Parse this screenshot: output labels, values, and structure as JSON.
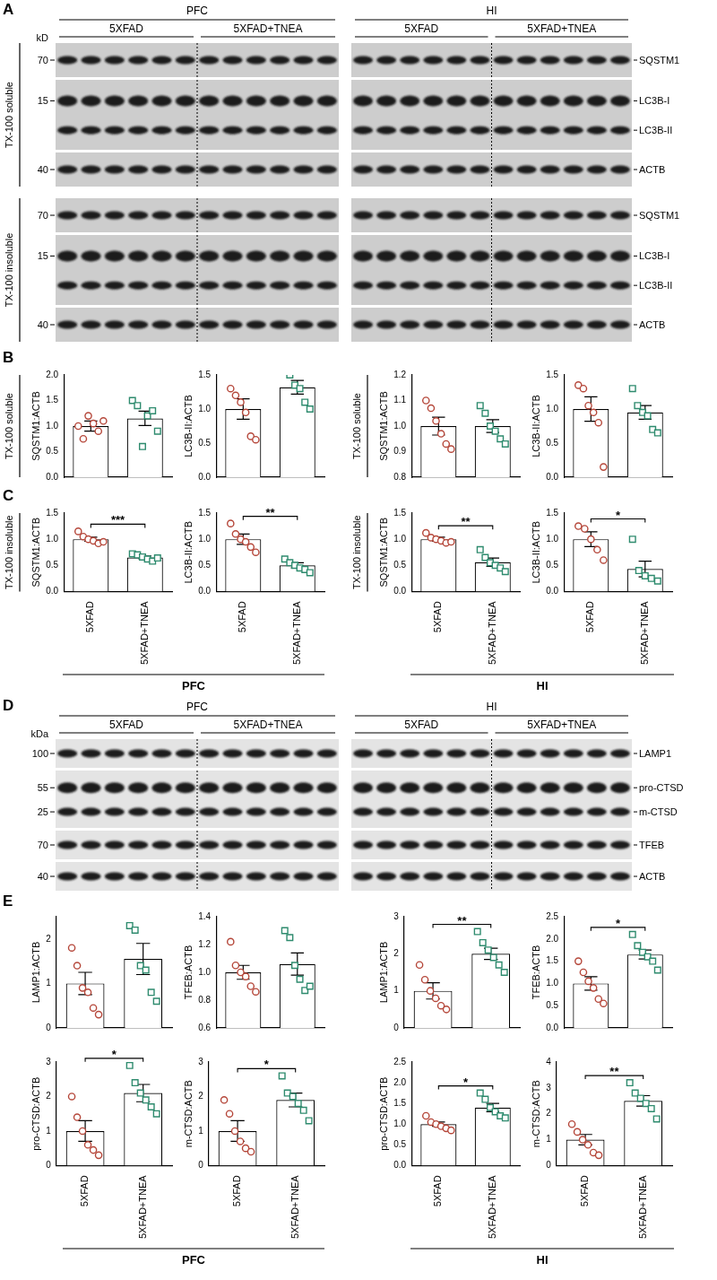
{
  "panel_labels": [
    "A",
    "B",
    "C",
    "D",
    "E"
  ],
  "blots": [
    {
      "panel": "A",
      "marker_unit": "kD",
      "lanes_per_group": 6,
      "regions": [
        {
          "name": "PFC",
          "groups": [
            "5XFAD",
            "5XFAD+TNEA"
          ]
        },
        {
          "name": "HI",
          "groups": [
            "5XFAD",
            "5XFAD+TNEA"
          ]
        }
      ],
      "sections": [
        {
          "label": "TX-100 soluble",
          "rows": [
            {
              "bands": [
                {
                  "name": "SQSTM1",
                  "marker": 70
                }
              ]
            },
            {
              "bands": [
                {
                  "name": "LC3B-I",
                  "marker": 15
                },
                {
                  "name": "LC3B-II"
                }
              ]
            },
            {
              "bands": [
                {
                  "name": "ACTB",
                  "marker": 40
                }
              ]
            }
          ]
        },
        {
          "label": "TX-100 insoluble",
          "rows": [
            {
              "bands": [
                {
                  "name": "SQSTM1",
                  "marker": 70
                }
              ]
            },
            {
              "bands": [
                {
                  "name": "LC3B-I",
                  "marker": 15
                },
                {
                  "name": "LC3B-II"
                }
              ]
            },
            {
              "bands": [
                {
                  "name": "ACTB",
                  "marker": 40
                }
              ]
            }
          ]
        }
      ]
    },
    {
      "panel": "D",
      "marker_unit": "kDa",
      "lanes_per_group": 6,
      "regions": [
        {
          "name": "PFC",
          "groups": [
            "5XFAD",
            "5XFAD+TNEA"
          ]
        },
        {
          "name": "HI",
          "groups": [
            "5XFAD",
            "5XFAD+TNEA"
          ]
        }
      ],
      "sections": [
        {
          "rows": [
            {
              "bands": [
                {
                  "name": "LAMP1",
                  "marker": 100
                }
              ]
            },
            {
              "bands": [
                {
                  "name": "pro-CTSD",
                  "marker": 55
                },
                {
                  "name": "m-CTSD",
                  "marker": 25
                }
              ]
            },
            {
              "bands": [
                {
                  "name": "TFEB",
                  "marker": 70
                }
              ]
            },
            {
              "bands": [
                {
                  "name": "ACTB",
                  "marker": 40
                }
              ]
            }
          ]
        }
      ]
    }
  ],
  "footer_labels": [
    [
      "PFC",
      "HI"
    ],
    [
      "PFC",
      "HI"
    ]
  ],
  "chart_data": [
    {
      "type": "bar",
      "y_label": "SQSTM1:ACTB",
      "y_group_label": "TX-100 soluble",
      "tick_labels": "y",
      "categories": [
        "5XFAD",
        "5XFAD+TNEA"
      ],
      "values": [
        1.0,
        1.15
      ],
      "errors": [
        0.1,
        0.14
      ],
      "points": [
        {
          "color": "#b5473a",
          "marker": "circle",
          "values": [
            1.0,
            0.75,
            1.2,
            1.05,
            0.9,
            1.1
          ]
        },
        {
          "color": "#2e8b6e",
          "marker": "square",
          "values": [
            1.5,
            1.4,
            0.6,
            1.2,
            1.3,
            0.9
          ]
        }
      ],
      "ylim": [
        0,
        2
      ],
      "yticks": [
        {
          "value": 0,
          "label": "0.0"
        },
        0.5,
        {
          "value": 1,
          "label": "1.0"
        },
        1.5,
        {
          "value": 2,
          "label": "2.0"
        }
      ],
      "grid": false
    },
    {
      "type": "bar",
      "y_label": "LC3B-II:ACTB",
      "tick_labels": "y",
      "categories": [
        "5XFAD",
        "5XFAD+TNEA"
      ],
      "values": [
        1.0,
        1.32
      ],
      "errors": [
        0.15,
        0.1
      ],
      "points": [
        {
          "color": "#b5473a",
          "marker": "circle",
          "values": [
            1.3,
            1.2,
            1.1,
            0.95,
            0.6,
            0.55
          ]
        },
        {
          "color": "#2e8b6e",
          "marker": "square",
          "values": [
            1.6,
            1.5,
            1.35,
            1.3,
            1.1,
            1.0
          ]
        }
      ],
      "ylim": [
        0,
        1.5
      ],
      "yticks": [
        {
          "value": 0,
          "label": "0.0"
        },
        0.5,
        {
          "value": 1,
          "label": "1.0"
        },
        1.5
      ],
      "grid": false
    },
    {
      "type": "bar",
      "y_label": "SQSTM1:ACTB",
      "y_group_label": "TX-100 soluble",
      "tick_labels": "y",
      "categories": [
        "5XFAD",
        "5XFAD+TNEA"
      ],
      "values": [
        1.0,
        1.0
      ],
      "errors": [
        0.035,
        0.025
      ],
      "points": [
        {
          "color": "#b5473a",
          "marker": "circle",
          "values": [
            1.1,
            1.07,
            1.02,
            0.97,
            0.93,
            0.91
          ]
        },
        {
          "color": "#2e8b6e",
          "marker": "square",
          "values": [
            1.08,
            1.05,
            1.0,
            0.98,
            0.95,
            0.93
          ]
        }
      ],
      "ylim": [
        0.8,
        1.2
      ],
      "yticks": [
        0.8,
        0.9,
        {
          "value": 1,
          "label": "1.0"
        },
        1.1,
        1.2
      ],
      "grid": false
    },
    {
      "type": "bar",
      "y_label": "LC3B-II:ACTB",
      "tick_labels": "y",
      "categories": [
        "5XFAD",
        "5XFAD+TNEA"
      ],
      "values": [
        1.0,
        0.95
      ],
      "errors": [
        0.18,
        0.1
      ],
      "points": [
        {
          "color": "#b5473a",
          "marker": "circle",
          "values": [
            1.35,
            1.3,
            1.05,
            0.95,
            0.8,
            0.15
          ]
        },
        {
          "color": "#2e8b6e",
          "marker": "square",
          "values": [
            1.3,
            1.05,
            0.95,
            0.9,
            0.7,
            0.65
          ]
        }
      ],
      "ylim": [
        0,
        1.5
      ],
      "yticks": [
        {
          "value": 0,
          "label": "0.0"
        },
        0.5,
        {
          "value": 1,
          "label": "1.0"
        },
        1.5
      ],
      "grid": false
    },
    {
      "type": "bar",
      "y_label": "SQSTM1:ACTB",
      "y_group_label": "TX-100 insoluble",
      "significance": "***",
      "categories": [
        "5XFAD",
        "5XFAD+TNEA"
      ],
      "values": [
        1.0,
        0.65
      ],
      "errors": [
        0.04,
        0.03
      ],
      "points": [
        {
          "color": "#b5473a",
          "marker": "circle",
          "values": [
            1.15,
            1.05,
            1.0,
            0.97,
            0.92,
            0.95
          ]
        },
        {
          "color": "#2e8b6e",
          "marker": "square",
          "values": [
            0.72,
            0.7,
            0.66,
            0.62,
            0.58,
            0.64
          ]
        }
      ],
      "ylim": [
        0,
        1.5
      ],
      "yticks": [
        {
          "value": 0,
          "label": "0.0"
        },
        0.5,
        {
          "value": 1,
          "label": "1.0"
        },
        1.5
      ],
      "grid": false
    },
    {
      "type": "bar",
      "y_label": "LC3B-II:ACTB",
      "significance": "**",
      "categories": [
        "5XFAD",
        "5XFAD+TNEA"
      ],
      "values": [
        1.0,
        0.5
      ],
      "errors": [
        0.1,
        0.05
      ],
      "points": [
        {
          "color": "#b5473a",
          "marker": "circle",
          "values": [
            1.3,
            1.1,
            1.0,
            0.95,
            0.85,
            0.75
          ]
        },
        {
          "color": "#2e8b6e",
          "marker": "square",
          "values": [
            0.62,
            0.55,
            0.5,
            0.45,
            0.42,
            0.36
          ]
        }
      ],
      "ylim": [
        0,
        1.5
      ],
      "yticks": [
        {
          "value": 0,
          "label": "0.0"
        },
        0.5,
        {
          "value": 1,
          "label": "1.0"
        },
        1.5
      ],
      "grid": false
    },
    {
      "type": "bar",
      "y_label": "SQSTM1:ACTB",
      "y_group_label": "TX-100 insoluble",
      "significance": "**",
      "categories": [
        "5XFAD",
        "5XFAD+TNEA"
      ],
      "values": [
        1.0,
        0.56
      ],
      "errors": [
        0.04,
        0.08
      ],
      "points": [
        {
          "color": "#b5473a",
          "marker": "circle",
          "values": [
            1.12,
            1.03,
            1.0,
            0.97,
            0.93,
            0.95
          ]
        },
        {
          "color": "#2e8b6e",
          "marker": "square",
          "values": [
            0.8,
            0.65,
            0.55,
            0.5,
            0.45,
            0.38
          ]
        }
      ],
      "ylim": [
        0,
        1.5
      ],
      "yticks": [
        {
          "value": 0,
          "label": "0.0"
        },
        0.5,
        {
          "value": 1,
          "label": "1.0"
        },
        1.5
      ],
      "grid": false
    },
    {
      "type": "bar",
      "y_label": "LC3B-II:ACTB",
      "significance": "*",
      "categories": [
        "5XFAD",
        "5XFAD+TNEA"
      ],
      "values": [
        1.0,
        0.43
      ],
      "errors": [
        0.14,
        0.15
      ],
      "points": [
        {
          "color": "#b5473a",
          "marker": "circle",
          "values": [
            1.25,
            1.2,
            1.0,
            0.8,
            0.6
          ]
        },
        {
          "color": "#2e8b6e",
          "marker": "square",
          "values": [
            1.0,
            0.4,
            0.3,
            0.25,
            0.2
          ]
        }
      ],
      "ylim": [
        0,
        1.5
      ],
      "yticks": [
        {
          "value": 0,
          "label": "0.0"
        },
        0.5,
        {
          "value": 1,
          "label": "1.0"
        },
        1.5
      ],
      "grid": false
    },
    {
      "type": "bar",
      "y_label": "LAMP1:ACTB",
      "tick_labels": "y",
      "categories": [
        "5XFAD",
        "5XFAD+TNEA"
      ],
      "values": [
        1.0,
        1.55
      ],
      "errors": [
        0.25,
        0.35
      ],
      "points": [
        {
          "color": "#b5473a",
          "marker": "circle",
          "values": [
            1.8,
            1.4,
            0.9,
            0.8,
            0.45,
            0.3
          ]
        },
        {
          "color": "#2e8b6e",
          "marker": "square",
          "values": [
            2.3,
            2.2,
            1.4,
            1.3,
            0.8,
            0.6
          ]
        }
      ],
      "ylim": [
        0,
        2.5
      ],
      "yticks": [
        0,
        1,
        2
      ],
      "grid": false
    },
    {
      "type": "bar",
      "y_label": "TFEB:ACTB",
      "tick_labels": "y",
      "categories": [
        "5XFAD",
        "5XFAD+TNEA"
      ],
      "values": [
        1.0,
        1.06
      ],
      "errors": [
        0.05,
        0.08
      ],
      "points": [
        {
          "color": "#b5473a",
          "marker": "circle",
          "values": [
            1.22,
            1.05,
            1.0,
            0.97,
            0.9,
            0.86
          ]
        },
        {
          "color": "#2e8b6e",
          "marker": "square",
          "values": [
            1.3,
            1.25,
            1.05,
            0.95,
            0.87,
            0.9
          ]
        }
      ],
      "ylim": [
        0.6,
        1.4
      ],
      "yticks": [
        0.6,
        0.8,
        {
          "value": 1,
          "label": "1.0"
        },
        1.2,
        1.4
      ],
      "grid": false
    },
    {
      "type": "bar",
      "y_label": "LAMP1:ACTB",
      "tick_labels": "y",
      "significance": "**",
      "categories": [
        "5XFAD",
        "5XFAD+TNEA"
      ],
      "values": [
        1.0,
        2.0
      ],
      "errors": [
        0.22,
        0.15
      ],
      "points": [
        {
          "color": "#b5473a",
          "marker": "circle",
          "values": [
            1.7,
            1.3,
            1.0,
            0.8,
            0.6,
            0.5
          ]
        },
        {
          "color": "#2e8b6e",
          "marker": "square",
          "values": [
            2.6,
            2.3,
            2.1,
            1.9,
            1.7,
            1.5
          ]
        }
      ],
      "ylim": [
        0,
        3
      ],
      "yticks": [
        0,
        1,
        2,
        3
      ],
      "grid": false
    },
    {
      "type": "bar",
      "y_label": "TFEB:ACTB",
      "tick_labels": "y",
      "significance": "*",
      "categories": [
        "5XFAD",
        "5XFAD+TNEA"
      ],
      "values": [
        1.0,
        1.65
      ],
      "errors": [
        0.15,
        0.1
      ],
      "points": [
        {
          "color": "#b5473a",
          "marker": "circle",
          "values": [
            1.5,
            1.25,
            1.05,
            0.9,
            0.65,
            0.55
          ]
        },
        {
          "color": "#2e8b6e",
          "marker": "square",
          "values": [
            2.1,
            1.85,
            1.7,
            1.6,
            1.5,
            1.3
          ]
        }
      ],
      "ylim": [
        0,
        2.5
      ],
      "yticks": [
        {
          "value": 0,
          "label": "0.0"
        },
        0.5,
        {
          "value": 1,
          "label": "1.0"
        },
        1.5,
        {
          "value": 2,
          "label": "2.0"
        },
        2.5
      ],
      "grid": false
    },
    {
      "type": "bar",
      "y_label": "pro-CTSD:ACTB",
      "significance": "*",
      "categories": [
        "5XFAD",
        "5XFAD+TNEA"
      ],
      "values": [
        1.0,
        2.1
      ],
      "errors": [
        0.3,
        0.25
      ],
      "points": [
        {
          "color": "#b5473a",
          "marker": "circle",
          "values": [
            2.0,
            1.4,
            1.0,
            0.6,
            0.45,
            0.3
          ]
        },
        {
          "color": "#2e8b6e",
          "marker": "square",
          "values": [
            2.9,
            2.4,
            2.1,
            1.9,
            1.7,
            1.5
          ]
        }
      ],
      "ylim": [
        0,
        3
      ],
      "yticks": [
        0,
        1,
        2,
        3
      ],
      "grid": false
    },
    {
      "type": "bar",
      "y_label": "m-CTSD:ACTB",
      "significance": "*",
      "categories": [
        "5XFAD",
        "5XFAD+TNEA"
      ],
      "values": [
        1.0,
        1.9
      ],
      "errors": [
        0.3,
        0.2
      ],
      "points": [
        {
          "color": "#b5473a",
          "marker": "circle",
          "values": [
            1.9,
            1.5,
            1.0,
            0.7,
            0.5,
            0.4
          ]
        },
        {
          "color": "#2e8b6e",
          "marker": "square",
          "values": [
            2.6,
            2.1,
            2.0,
            1.8,
            1.6,
            1.3
          ]
        }
      ],
      "ylim": [
        0,
        3
      ],
      "yticks": [
        0,
        1,
        2,
        3
      ],
      "grid": false
    },
    {
      "type": "bar",
      "y_label": "pro-CTSD:ACTB",
      "significance": "*",
      "categories": [
        "5XFAD",
        "5XFAD+TNEA"
      ],
      "values": [
        1.0,
        1.4
      ],
      "errors": [
        0.05,
        0.1
      ],
      "points": [
        {
          "color": "#b5473a",
          "marker": "circle",
          "values": [
            1.2,
            1.05,
            1.0,
            0.95,
            0.9,
            0.85
          ]
        },
        {
          "color": "#2e8b6e",
          "marker": "square",
          "values": [
            1.75,
            1.6,
            1.4,
            1.3,
            1.2,
            1.15
          ]
        }
      ],
      "ylim": [
        0,
        2.5
      ],
      "yticks": [
        {
          "value": 0,
          "label": "0.0"
        },
        0.5,
        {
          "value": 1,
          "label": "1.0"
        },
        1.5,
        {
          "value": 2,
          "label": "2.0"
        },
        2.5
      ],
      "grid": false
    },
    {
      "type": "bar",
      "y_label": "m-CTSD:ACTB",
      "significance": "**",
      "categories": [
        "5XFAD",
        "5XFAD+TNEA"
      ],
      "values": [
        1.0,
        2.5
      ],
      "errors": [
        0.2,
        0.2
      ],
      "points": [
        {
          "color": "#b5473a",
          "marker": "circle",
          "values": [
            1.6,
            1.3,
            1.0,
            0.8,
            0.5,
            0.4
          ]
        },
        {
          "color": "#2e8b6e",
          "marker": "square",
          "values": [
            3.2,
            2.8,
            2.6,
            2.4,
            2.2,
            1.8
          ]
        }
      ],
      "ylim": [
        0,
        4
      ],
      "yticks": [
        0,
        1,
        2,
        3,
        4
      ],
      "grid": false
    }
  ]
}
